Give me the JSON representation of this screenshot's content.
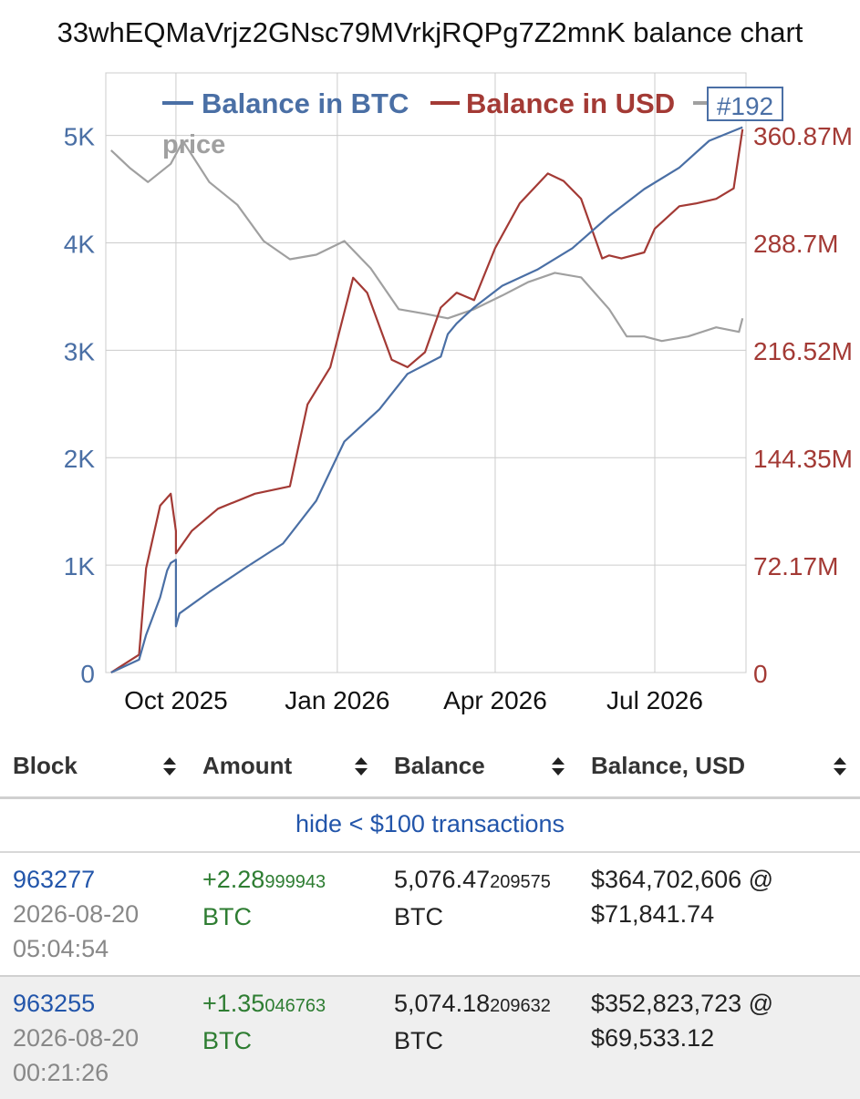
{
  "title": "33whEQMaVrjz2GNsc79MVrkjRQPg7Z2mnK balance chart",
  "colors": {
    "btc": "#4a6fa5",
    "usd": "#a33a35",
    "price": "#a0a0a0",
    "grid": "#cccccc",
    "link": "#2255aa",
    "amount": "#2e7d32"
  },
  "chart_data": {
    "type": "line",
    "title": "33whEQMaVrjz2GNsc79MVrkjRQPg7Z2mnK balance chart",
    "legend": [
      "Balance in BTC",
      "Balance in USD",
      "price"
    ],
    "highlight_label": "#192",
    "x_ticks": [
      "Oct 2025",
      "Jan 2026",
      "Apr 2026",
      "Jul 2026"
    ],
    "y_left_ticks": [
      "0",
      "1K",
      "2K",
      "3K",
      "4K",
      "5K"
    ],
    "y_right_ticks": [
      "0",
      "72.17M",
      "144.35M",
      "216.52M",
      "288.7M",
      "360.87M"
    ],
    "ylim_left": [
      0,
      5200
    ],
    "ylim_right": [
      0,
      375000000
    ],
    "grid": true,
    "series": [
      {
        "name": "Balance in BTC",
        "axis": "left",
        "x": [
          "2025-08-25",
          "2025-09-10",
          "2025-09-14",
          "2025-09-22",
          "2025-09-26",
          "2025-09-28",
          "2025-10-01",
          "2025-10-01",
          "2025-10-03",
          "2025-10-20",
          "2025-11-10",
          "2025-12-01",
          "2025-12-20",
          "2026-01-05",
          "2026-01-25",
          "2026-02-10",
          "2026-03-01",
          "2026-03-05",
          "2026-03-10",
          "2026-03-20",
          "2026-04-05",
          "2026-04-25",
          "2026-05-15",
          "2026-06-05",
          "2026-06-25",
          "2026-07-15",
          "2026-08-01",
          "2026-08-20"
        ],
        "values": [
          0,
          120,
          350,
          700,
          950,
          1020,
          1050,
          430,
          550,
          750,
          980,
          1200,
          1600,
          2150,
          2450,
          2780,
          2940,
          3150,
          3250,
          3400,
          3600,
          3750,
          3950,
          4250,
          4500,
          4700,
          4950,
          5076
        ]
      },
      {
        "name": "Balance in USD",
        "axis": "right",
        "x": [
          "2025-08-25",
          "2025-09-10",
          "2025-09-14",
          "2025-09-22",
          "2025-09-28",
          "2025-10-01",
          "2025-10-01",
          "2025-10-10",
          "2025-10-25",
          "2025-11-15",
          "2025-12-05",
          "2025-12-15",
          "2025-12-28",
          "2026-01-10",
          "2026-01-18",
          "2026-02-01",
          "2026-02-10",
          "2026-02-20",
          "2026-03-01",
          "2026-03-10",
          "2026-03-20",
          "2026-04-01",
          "2026-04-15",
          "2026-05-01",
          "2026-05-10",
          "2026-05-20",
          "2026-06-01",
          "2026-06-05",
          "2026-06-12",
          "2026-06-25",
          "2026-07-01",
          "2026-07-15",
          "2026-07-25",
          "2026-08-05",
          "2026-08-15",
          "2026-08-20"
        ],
        "values": [
          0,
          12000000,
          70000000,
          112000000,
          120000000,
          95000000,
          80000000,
          95000000,
          110000000,
          120000000,
          125000000,
          180000000,
          205000000,
          265000000,
          255000000,
          210000000,
          205000000,
          215000000,
          245000000,
          255000000,
          250000000,
          285000000,
          315000000,
          335000000,
          330000000,
          318000000,
          278000000,
          280000000,
          278000000,
          282000000,
          298000000,
          313000000,
          315000000,
          318000000,
          325000000,
          364700000
        ]
      },
      {
        "name": "price",
        "axis": "none",
        "x": [
          "2025-08-25",
          "2025-09-05",
          "2025-09-15",
          "2025-09-28",
          "2025-10-05",
          "2025-10-20",
          "2025-11-05",
          "2025-11-20",
          "2025-12-05",
          "2025-12-20",
          "2026-01-05",
          "2026-01-20",
          "2026-02-05",
          "2026-02-20",
          "2026-03-05",
          "2026-03-20",
          "2026-04-05",
          "2026-04-20",
          "2026-05-05",
          "2026-05-20",
          "2026-06-05",
          "2026-06-15",
          "2026-06-25",
          "2026-07-05",
          "2026-07-20",
          "2026-08-05",
          "2026-08-18",
          "2026-08-20"
        ],
        "values": [
          115000,
          111000,
          108000,
          112000,
          117000,
          108000,
          103000,
          95000,
          91000,
          92000,
          95000,
          89000,
          80000,
          79000,
          78000,
          80000,
          83000,
          86000,
          88000,
          87000,
          80000,
          74000,
          74000,
          73000,
          74000,
          76000,
          75000,
          78000
        ]
      }
    ]
  },
  "table": {
    "headers": [
      "Block",
      "Amount",
      "Balance",
      "Balance, USD"
    ],
    "filter_link": "hide < $100 transactions",
    "rows": [
      {
        "block": "963277",
        "date": "2026-08-20",
        "time": "05:04:54",
        "amount_main": "+2.28",
        "amount_small": "999943",
        "amount_unit": "BTC",
        "balance_main": "5,076.47",
        "balance_small": "209575",
        "balance_unit": "BTC",
        "usd_value": "$364,702,606 @",
        "usd_price": "$71,841.74"
      },
      {
        "block": "963255",
        "date": "2026-08-20",
        "time": "00:21:26",
        "amount_main": "+1.35",
        "amount_small": "046763",
        "amount_unit": "BTC",
        "balance_main": "5,074.18",
        "balance_small": "209632",
        "balance_unit": "BTC",
        "usd_value": "$352,823,723 @",
        "usd_price": "$69,533.12"
      }
    ]
  }
}
